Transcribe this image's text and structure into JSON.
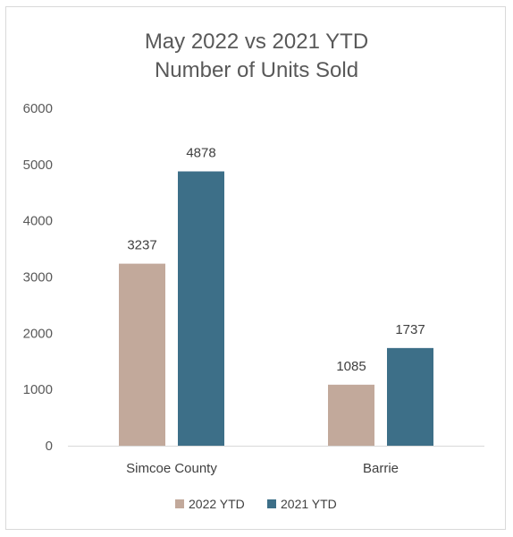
{
  "chart_data": {
    "type": "bar",
    "title_lines": [
      "May 2022 vs 2021 YTD",
      "Number of Units Sold"
    ],
    "categories": [
      "Simcoe County",
      "Barrie"
    ],
    "series": [
      {
        "name": "2022 YTD",
        "values": [
          3237,
          1085
        ],
        "color": "#c2a99b"
      },
      {
        "name": "2021 YTD",
        "values": [
          4878,
          1737
        ],
        "color": "#3d6f88"
      }
    ],
    "ylim": [
      0,
      6000
    ],
    "yticks": [
      0,
      1000,
      2000,
      3000,
      4000,
      5000,
      6000
    ],
    "grid": false,
    "legend_position": "bottom",
    "data_labels": true
  }
}
